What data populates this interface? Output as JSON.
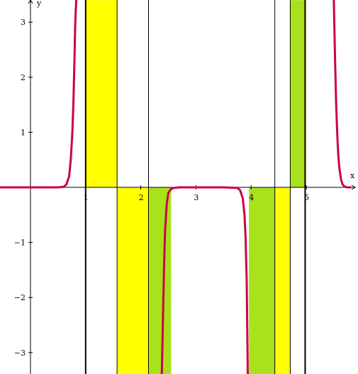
{
  "chart_data": {
    "type": "line",
    "title": "",
    "xlabel": "x",
    "ylabel": "y",
    "xlim": [
      -0.55,
      5.95
    ],
    "ylim": [
      -3.4,
      3.4
    ],
    "grid": false,
    "x_ticks": [
      1,
      2,
      3,
      4,
      5
    ],
    "x_tick_labels": [
      "1",
      "2",
      "3",
      "4",
      "5"
    ],
    "y_ticks": [
      -3,
      -2,
      -1,
      1,
      2,
      3
    ],
    "y_tick_labels": [
      "−3",
      "−2",
      "−1",
      "1",
      "2",
      "3"
    ],
    "vertical_lines": [
      1.0,
      4.98
    ],
    "shaded_regions": [
      {
        "x0": 1.0,
        "x1": 1.57,
        "y0": 0,
        "y1": 3.4,
        "color": "#ffff00"
      },
      {
        "x0": 1.57,
        "x1": 2.14,
        "y0": -3.4,
        "y1": 0,
        "color": "#ffff00"
      },
      {
        "x0": 2.14,
        "x1": 2.55,
        "y0": -3.4,
        "y1": 0,
        "color": "#a8e21c"
      },
      {
        "x0": 3.96,
        "x1": 4.43,
        "y0": -3.4,
        "y1": 0,
        "color": "#a8e21c"
      },
      {
        "x0": 4.43,
        "x1": 4.71,
        "y0": -3.4,
        "y1": 0,
        "color": "#ffff00"
      },
      {
        "x0": 4.71,
        "x1": 4.98,
        "y0": 0,
        "y1": 3.4,
        "color": "#a8e21c"
      }
    ],
    "divider_lines": [
      1.57,
      2.14,
      4.43,
      4.71
    ],
    "series": [
      {
        "color": "#cc0044",
        "x": [
          -0.55,
          0.5,
          0.6,
          0.65,
          0.7,
          0.73,
          0.76,
          0.78,
          0.8,
          0.81,
          0.82,
          0.83
        ],
        "y": [
          0,
          0,
          0.01,
          0.05,
          0.2,
          0.5,
          1.0,
          1.6,
          2.4,
          2.9,
          3.2,
          3.4
        ]
      },
      {
        "color": "#cc0044",
        "x": [
          2.38,
          2.39,
          2.4,
          2.42,
          2.44,
          2.47,
          2.5,
          2.55,
          2.6,
          2.7,
          3.0,
          3.5,
          3.75,
          3.8,
          3.85,
          3.88,
          3.9,
          3.92,
          3.93,
          3.94
        ],
        "y": [
          -3.4,
          -3.0,
          -2.5,
          -1.5,
          -0.8,
          -0.3,
          -0.1,
          -0.03,
          -0.01,
          0,
          0,
          0,
          -0.01,
          -0.05,
          -0.2,
          -0.5,
          -0.9,
          -1.7,
          -2.6,
          -3.4
        ]
      },
      {
        "color": "#cc0044",
        "x": [
          5.5,
          5.51,
          5.52,
          5.54,
          5.56,
          5.58,
          5.6,
          5.63,
          5.66,
          5.7,
          5.75,
          5.8
        ],
        "y": [
          3.4,
          2.9,
          2.4,
          1.6,
          1.0,
          0.6,
          0.35,
          0.15,
          0.05,
          0.01,
          0,
          0
        ]
      }
    ]
  }
}
